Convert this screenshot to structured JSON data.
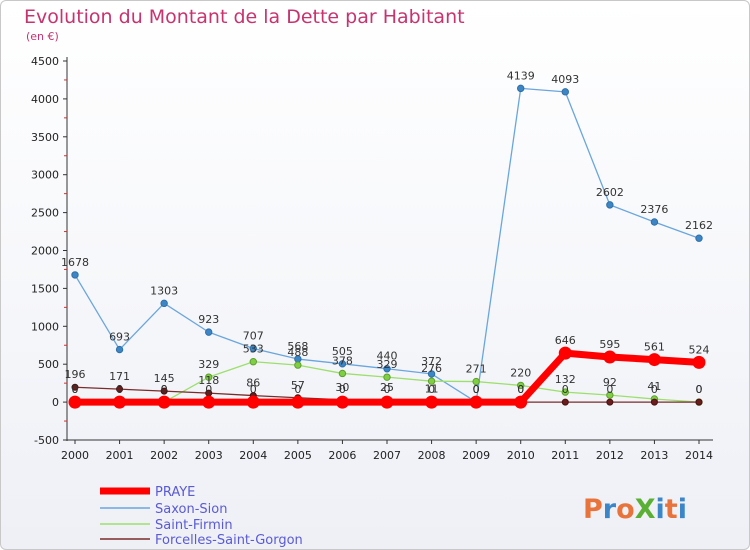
{
  "header": {
    "title": "Evolution du Montant de la Dette par Habitant",
    "subtitle": "(en €)"
  },
  "logo": {
    "text": "ProXiti",
    "colors": [
      "#e8743b",
      "#3b86c8",
      "#e8743b",
      "#5ab034",
      "#3b86c8",
      "#e8743b",
      "#3b86c8"
    ]
  },
  "chart_data": {
    "type": "line",
    "x": [
      2000,
      2001,
      2002,
      2003,
      2004,
      2005,
      2006,
      2007,
      2008,
      2009,
      2010,
      2011,
      2012,
      2013,
      2014
    ],
    "ylim": [
      -500,
      4500
    ],
    "yticks": [
      -500,
      0,
      500,
      1000,
      1500,
      2000,
      2500,
      3000,
      3500,
      4000,
      4500
    ],
    "grid": false,
    "legend": "bottom-left",
    "series": [
      {
        "name": "PRAYE",
        "color": "#ff0000",
        "values": [
          0,
          0,
          0,
          0,
          0,
          0,
          0,
          0,
          0,
          0,
          0,
          646,
          595,
          561,
          524
        ],
        "labels": [
          "0",
          "0",
          "0",
          "0",
          "0",
          "0",
          "0",
          "0",
          "0",
          "0",
          "0",
          "646",
          "595",
          "561",
          "524"
        ]
      },
      {
        "name": "Saxon-Sion",
        "color": "#6aa6dd",
        "values": [
          1678,
          693,
          1303,
          923,
          707,
          568,
          505,
          440,
          372,
          0,
          4139,
          4093,
          2602,
          2376,
          2162
        ],
        "labels": [
          "1678",
          "693",
          "1303",
          "923",
          "707",
          "568",
          "505",
          "440",
          "372",
          "0",
          "4139",
          "4093",
          "2602",
          "2376",
          "2162"
        ]
      },
      {
        "name": "Saint-Firmin",
        "color": "#9cdf6c",
        "values": [
          0,
          0,
          0,
          329,
          533,
          488,
          378,
          329,
          276,
          271,
          220,
          132,
          92,
          41,
          0
        ],
        "labels": [
          "0",
          "0",
          "0",
          "329",
          "533",
          "488",
          "378",
          "329",
          "276",
          "271",
          "220",
          "132",
          "92",
          "41",
          "0"
        ]
      },
      {
        "name": "Forcelles-Saint-Gorgon",
        "color": "#7a2b2b",
        "values": [
          196,
          171,
          145,
          118,
          86,
          57,
          30,
          25,
          11,
          0,
          0,
          0,
          0,
          0,
          0
        ],
        "labels": [
          "196",
          "171",
          "145",
          "118",
          "86",
          "57",
          "30",
          "25",
          "11",
          "0",
          "0",
          "0",
          "0",
          "0",
          "0"
        ]
      }
    ]
  }
}
